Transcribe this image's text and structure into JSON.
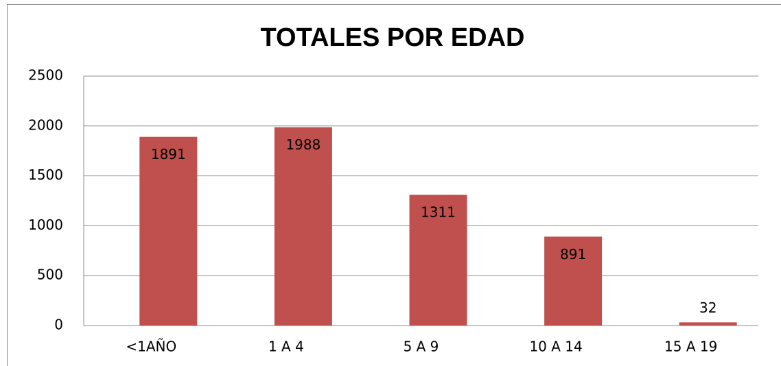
{
  "chart_data": {
    "type": "bar",
    "title": "TOTALES POR EDAD",
    "categories": [
      "<1AÑO",
      "1 A 4",
      "5 A 9",
      "10 A 14",
      "15 A 19"
    ],
    "values": [
      1891,
      1988,
      1311,
      891,
      32
    ],
    "color": "#c0504d",
    "ylim": [
      0,
      2500
    ],
    "yticks": [
      0,
      500,
      1000,
      1500,
      2000,
      2500
    ],
    "grid": true
  }
}
